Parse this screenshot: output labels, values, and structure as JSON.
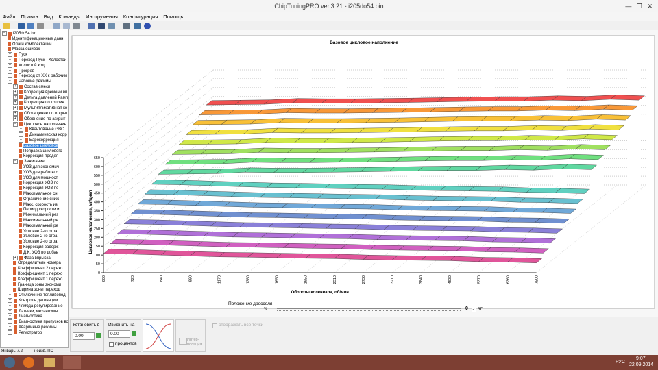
{
  "window": {
    "title": "ChipTuningPRO ver.3.21 - i205do54.bin",
    "menu": [
      "Файл",
      "Правка",
      "Вид",
      "Команды",
      "Инструменты",
      "Конфигурация",
      "Помощь"
    ]
  },
  "tree": {
    "label": "i205do54.bin",
    "children": [
      {
        "label": "Идентификационные данн"
      },
      {
        "label": "Флаги комплектации"
      },
      {
        "label": "Маска ошибок"
      },
      {
        "label": "Пуск",
        "expandable": true
      },
      {
        "label": "Переход Пуск - Холостой х",
        "expandable": true
      },
      {
        "label": "Холостой ход",
        "expandable": true
      },
      {
        "label": "Прогрев",
        "expandable": true
      },
      {
        "label": "Переход от ХХ к рабочим р",
        "expandable": true
      },
      {
        "label": "Рабочие режимы",
        "children": [
          {
            "label": "Состав смеси",
            "expandable": true
          },
          {
            "label": "Коррекция времени вп",
            "expandable": true
          },
          {
            "label": "Дельта давлений Рамп",
            "expandable": true
          },
          {
            "label": "Коррекция по топлив",
            "expandable": true
          },
          {
            "label": "Мультипликативная ко",
            "expandable": true
          },
          {
            "label": "Обогащение по открыт",
            "expandable": true
          },
          {
            "label": "Обеднение по закрыт",
            "expandable": true
          },
          {
            "label": "Цикловое наполнение",
            "children": [
              {
                "label": "Квантование GBC",
                "expandable": true
              },
              {
                "label": "Динамическая корр",
                "expandable": true
              },
              {
                "label": "Барокоррекция",
                "expandable": true
              },
              {
                "label": "Базовое цикловое",
                "selected": true
              },
              {
                "label": "Поправка циклового"
              },
              {
                "label": "Коррекция предел"
              }
            ]
          },
          {
            "label": "Зажигание",
            "children": [
              {
                "label": "УОЗ для экономич"
              },
              {
                "label": "УОЗ для работы с"
              },
              {
                "label": "УОЗ для мощност"
              },
              {
                "label": "Коррекция УОЗ по"
              },
              {
                "label": "Коррекция УОЗ по"
              },
              {
                "label": "Максимальное сн"
              },
              {
                "label": "Ограничение сниж"
              },
              {
                "label": "Макс. скорость из"
              },
              {
                "label": "Период скорости и"
              },
              {
                "label": "Минимальный рез"
              },
              {
                "label": "Максимальный ре"
              },
              {
                "label": "Максимальный ре"
              },
              {
                "label": "Условие 2-го огра"
              },
              {
                "label": "Условие 2-го огра"
              },
              {
                "label": "Условие 2-го огра"
              },
              {
                "label": "Коррекция задерж"
              },
              {
                "label": "Д.К. УОЗ по добав"
              }
            ]
          },
          {
            "label": "Фаза впрыска",
            "expandable": true
          },
          {
            "label": "Определитель номера"
          },
          {
            "label": "Коэффициент 2 перехо"
          },
          {
            "label": "Коэффициент 1 перехо"
          },
          {
            "label": "Коэффициент 1 перехо"
          },
          {
            "label": "Граница зоны экономи"
          },
          {
            "label": "Ширина зоны переход"
          }
        ]
      },
      {
        "label": "Отключение топливопод",
        "expandable": true
      },
      {
        "label": "Контроль детонации",
        "expandable": true
      },
      {
        "label": "Лямбда регулирование",
        "expandable": true
      },
      {
        "label": "Датчики, механизмы",
        "expandable": true
      },
      {
        "label": "Диагностика",
        "expandable": true
      },
      {
        "label": "Диагностика пропусков во",
        "expandable": true
      },
      {
        "label": "Аварийные режимы",
        "expandable": true
      },
      {
        "label": "Регистратор",
        "expandable": true
      }
    ]
  },
  "chart_data": {
    "type": "ribbon",
    "title": "Базовое цикловое наполнение",
    "x_label": "Обороты коленвала, об/мин",
    "y_label": "Цикловое наполнение, мг/цикл",
    "categories": [
      "600",
      "720",
      "840",
      "990",
      "1170",
      "1380",
      "1650",
      "1950",
      "2310",
      "2730",
      "3210",
      "3840",
      "4530",
      "5370",
      "6360",
      "7500"
    ],
    "ylim": [
      0,
      650
    ],
    "yticks": [
      0,
      50,
      100,
      150,
      200,
      250,
      300,
      350,
      400,
      450,
      500,
      550,
      600,
      650
    ],
    "series": [
      {
        "color": "#e0559a",
        "values": [
          108,
          105,
          100,
          95,
          90,
          88,
          85,
          82,
          80,
          75,
          72,
          70,
          68,
          62,
          60,
          55
        ]
      },
      {
        "color": "#d060c0",
        "values": [
          133,
          130,
          125,
          120,
          115,
          113,
          110,
          107,
          105,
          100,
          97,
          95,
          93,
          87,
          85,
          80
        ]
      },
      {
        "color": "#b070d8",
        "values": [
          158,
          155,
          150,
          145,
          140,
          138,
          135,
          132,
          130,
          125,
          122,
          120,
          118,
          112,
          110,
          105
        ]
      },
      {
        "color": "#8a80d8",
        "values": [
          183,
          180,
          175,
          170,
          165,
          163,
          160,
          157,
          155,
          150,
          147,
          145,
          143,
          137,
          135,
          130
        ]
      },
      {
        "color": "#7090d0",
        "values": [
          208,
          205,
          200,
          195,
          190,
          188,
          185,
          182,
          180,
          175,
          172,
          170,
          168,
          162,
          160,
          155
        ]
      },
      {
        "color": "#70a8d8",
        "values": [
          233,
          230,
          225,
          220,
          215,
          213,
          210,
          207,
          205,
          200,
          197,
          195,
          193,
          187,
          185,
          180
        ]
      },
      {
        "color": "#68c0d0",
        "values": [
          258,
          255,
          250,
          245,
          240,
          238,
          235,
          232,
          230,
          225,
          222,
          220,
          218,
          212,
          210,
          205
        ]
      },
      {
        "color": "#60d0c0",
        "values": [
          283,
          280,
          275,
          270,
          265,
          263,
          260,
          257,
          255,
          250,
          247,
          245,
          243,
          237,
          235,
          230
        ]
      },
      {
        "color": "#60d8a0",
        "values": [
          308,
          310,
          312,
          320,
          318,
          318,
          320,
          322,
          325,
          328,
          330,
          330,
          335,
          332,
          340,
          335
        ]
      },
      {
        "color": "#70e080",
        "values": [
          333,
          335,
          337,
          345,
          343,
          343,
          345,
          347,
          350,
          353,
          355,
          355,
          360,
          357,
          365,
          360
        ]
      },
      {
        "color": "#a0e060",
        "values": [
          358,
          360,
          362,
          370,
          368,
          368,
          370,
          372,
          375,
          378,
          380,
          380,
          385,
          382,
          390,
          385
        ]
      },
      {
        "color": "#d0e848",
        "values": [
          383,
          385,
          387,
          395,
          393,
          393,
          395,
          397,
          400,
          403,
          405,
          405,
          410,
          407,
          415,
          410
        ]
      },
      {
        "color": "#f0e040",
        "values": [
          408,
          410,
          412,
          420,
          418,
          418,
          420,
          422,
          425,
          428,
          430,
          430,
          435,
          432,
          440,
          435
        ]
      },
      {
        "color": "#f8c038",
        "values": [
          433,
          435,
          437,
          445,
          443,
          443,
          445,
          447,
          450,
          453,
          455,
          455,
          460,
          457,
          465,
          460
        ]
      },
      {
        "color": "#f89838",
        "values": [
          458,
          460,
          462,
          470,
          468,
          468,
          470,
          472,
          475,
          478,
          480,
          480,
          485,
          482,
          490,
          485
        ]
      },
      {
        "color": "#f05050",
        "values": [
          483,
          485,
          487,
          495,
          493,
          493,
          495,
          497,
          500,
          503,
          505,
          505,
          510,
          507,
          515,
          510
        ]
      }
    ]
  },
  "controls": {
    "throttle": {
      "label": "Положение дросселя,",
      "unit": "%",
      "value": "0",
      "mode": "3D"
    },
    "set_to": {
      "label": "Установить в",
      "value": "0.00"
    },
    "change_by": {
      "label": "Изменить на",
      "value": "0.00",
      "percent": "процентов"
    },
    "interp": [
      "Интер-",
      "поляция"
    ],
    "show_all": "отображать все точки"
  },
  "status": [
    "Январь-7.2",
    "неизв. ПО"
  ],
  "taskbar": {
    "lang": "РУС",
    "time": "9:07",
    "date": "22.09.2014"
  }
}
